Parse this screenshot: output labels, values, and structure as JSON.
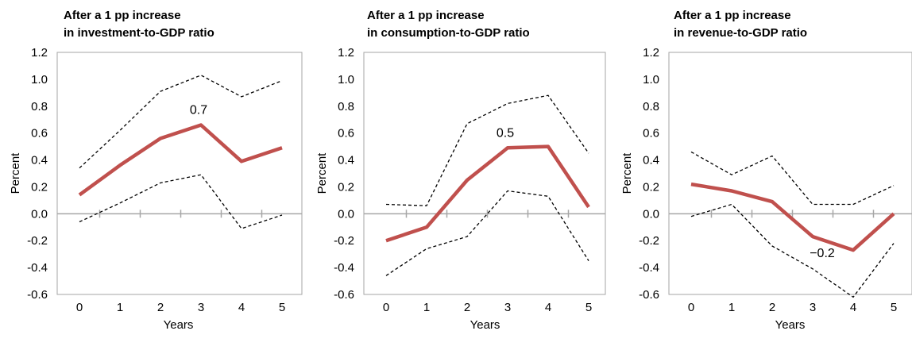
{
  "chart_data": [
    {
      "type": "line",
      "title": "After a 1 pp increase",
      "subtitle": "in investment-to-GDP ratio",
      "xlabel": "Years",
      "ylabel": "Percent",
      "x": [
        0,
        1,
        2,
        3,
        4,
        5
      ],
      "ylim": [
        -0.6,
        1.2
      ],
      "yticks": [
        "1.2",
        "1.0",
        "0.8",
        "0.6",
        "0.4",
        "0.2",
        "0.0",
        "-0.2",
        "-0.4",
        "-0.6"
      ],
      "series": [
        {
          "role": "estimate",
          "values": [
            0.14,
            0.36,
            0.56,
            0.66,
            0.39,
            0.49
          ]
        },
        {
          "role": "upper",
          "values": [
            0.34,
            0.62,
            0.91,
            1.03,
            0.87,
            0.99
          ]
        },
        {
          "role": "lower",
          "values": [
            -0.06,
            0.08,
            0.23,
            0.29,
            -0.11,
            -0.01
          ]
        }
      ],
      "annotation": {
        "text": "0.7",
        "x": 3
      }
    },
    {
      "type": "line",
      "title": "After a 1 pp increase",
      "subtitle": "in consumption-to-GDP ratio",
      "xlabel": "Years",
      "ylabel": "Percent",
      "x": [
        0,
        1,
        2,
        3,
        4,
        5
      ],
      "ylim": [
        -0.6,
        1.2
      ],
      "yticks": [
        "1.2",
        "1.0",
        "0.8",
        "0.6",
        "0.4",
        "0.2",
        "0.0",
        "-0.2",
        "-0.4",
        "-0.6"
      ],
      "series": [
        {
          "role": "estimate",
          "values": [
            -0.2,
            -0.1,
            0.25,
            0.49,
            0.5,
            0.05
          ]
        },
        {
          "role": "upper",
          "values": [
            0.07,
            0.06,
            0.67,
            0.82,
            0.88,
            0.45
          ]
        },
        {
          "role": "lower",
          "values": [
            -0.46,
            -0.26,
            -0.17,
            0.17,
            0.13,
            -0.35
          ]
        }
      ],
      "annotation": {
        "text": "0.5",
        "x": 3
      }
    },
    {
      "type": "line",
      "title": "After a 1 pp increase",
      "subtitle": "in revenue-to-GDP ratio",
      "xlabel": "Years",
      "ylabel": "Percent",
      "x": [
        0,
        1,
        2,
        3,
        4,
        5
      ],
      "ylim": [
        -0.6,
        1.2
      ],
      "yticks": [
        "1.2",
        "1.0",
        "0.8",
        "0.6",
        "0.4",
        "0.2",
        "0.0",
        "-0.2",
        "-0.4",
        "-0.6"
      ],
      "series": [
        {
          "role": "estimate",
          "values": [
            0.22,
            0.17,
            0.09,
            -0.17,
            -0.27,
            0.0
          ]
        },
        {
          "role": "upper",
          "values": [
            0.46,
            0.29,
            0.43,
            0.07,
            0.07,
            0.21
          ]
        },
        {
          "role": "lower",
          "values": [
            -0.02,
            0.07,
            -0.24,
            -0.41,
            -0.62,
            -0.22
          ]
        }
      ],
      "annotation": {
        "text": "−0.2",
        "x": 3
      }
    }
  ],
  "colors": {
    "estimate": "#c0504d",
    "band": "#000000",
    "axis": "#a6a6a6",
    "frame": "#a6a6a6",
    "text": "#000000"
  }
}
